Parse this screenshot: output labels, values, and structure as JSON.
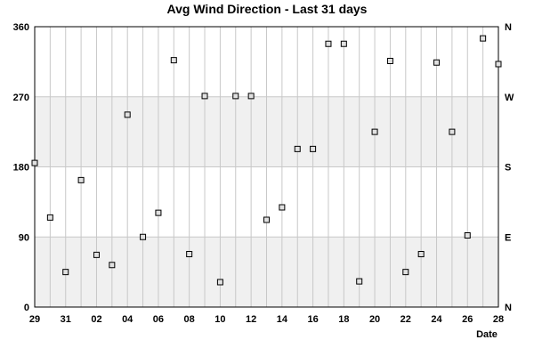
{
  "chart_data": {
    "type": "scatter",
    "title": "Avg Wind Direction - Last 31 days",
    "xlabel": "Date",
    "ylabel": "",
    "ylim": [
      0,
      360
    ],
    "yticks": [
      "0",
      "90",
      "180",
      "270",
      "360"
    ],
    "y2ticks": [
      "N",
      "E",
      "S",
      "W",
      "N"
    ],
    "xticks": [
      "29",
      "31",
      "02",
      "04",
      "06",
      "08",
      "10",
      "12",
      "14",
      "16",
      "18",
      "20",
      "22",
      "24",
      "26",
      "28"
    ],
    "grid": true,
    "background_bands": "light grey bands 0-90, 180-270",
    "colors": {
      "band": "#f0f0f0",
      "grid": "#c8c8c8",
      "marker_fill": "#e0e0e0",
      "marker_edge": "#000000"
    },
    "x": [
      "29",
      "30",
      "31",
      "01",
      "02",
      "03",
      "04",
      "05",
      "06",
      "07",
      "08",
      "09",
      "10",
      "11",
      "12",
      "13",
      "14",
      "15",
      "16",
      "17",
      "18",
      "19",
      "20",
      "21",
      "22",
      "23",
      "24",
      "25",
      "26",
      "27",
      "28"
    ],
    "values": [
      185,
      115,
      45,
      163,
      67,
      54,
      247,
      90,
      121,
      317,
      68,
      271,
      32,
      271,
      271,
      112,
      128,
      203,
      203,
      338,
      338,
      33,
      225,
      316,
      45,
      68,
      314,
      225,
      92,
      345,
      312
    ]
  }
}
